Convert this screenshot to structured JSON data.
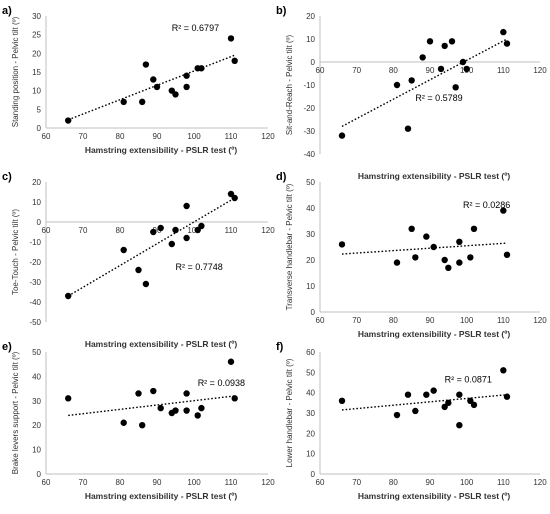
{
  "colors": {
    "point": "#000000",
    "trendline": "#000000",
    "axis": "#bfbfbf",
    "text": "#333333"
  },
  "chart_data": [
    {
      "id": "a",
      "panel_label": "a)",
      "type": "scatter",
      "xlabel": "Hamstring extensibility - PSLR test (º)",
      "ylabel": "Standing position - Pelvic tilt (º)",
      "xlim": [
        60,
        120
      ],
      "xticks": [
        60,
        70,
        80,
        90,
        100,
        110,
        120
      ],
      "ylim": [
        0,
        30
      ],
      "yticks": [
        0,
        5,
        10,
        15,
        20,
        25,
        30
      ],
      "x_axis_at": 0,
      "r2_text": "R² = 0.6797",
      "trendline": {
        "type": "linear",
        "points": [
          [
            66,
            2.2
          ],
          [
            111,
            19.5
          ]
        ]
      },
      "points": [
        [
          66,
          2
        ],
        [
          81,
          7
        ],
        [
          86,
          7
        ],
        [
          87,
          17
        ],
        [
          89,
          13
        ],
        [
          90,
          11
        ],
        [
          94,
          10
        ],
        [
          95,
          9
        ],
        [
          98,
          14
        ],
        [
          98,
          11
        ],
        [
          101,
          16
        ],
        [
          102,
          16
        ],
        [
          110,
          24
        ],
        [
          111,
          18
        ]
      ]
    },
    {
      "id": "b",
      "panel_label": "b)",
      "type": "scatter",
      "xlabel": "Hamstring extensibility - PSLR test (º)",
      "ylabel": "Sit-and-Reach - Pelvic tilt (º)",
      "xlim": [
        60,
        120
      ],
      "xticks": [
        60,
        70,
        80,
        90,
        100,
        110,
        120
      ],
      "ylim": [
        -40,
        20
      ],
      "yticks": [
        -40,
        -30,
        -20,
        -10,
        0,
        10,
        20
      ],
      "x_axis_at": 0,
      "r2_text": "R² = 0.5789",
      "trendline": {
        "type": "linear",
        "points": [
          [
            66,
            -28
          ],
          [
            111,
            10
          ]
        ]
      },
      "points": [
        [
          66,
          -32
        ],
        [
          81,
          -10
        ],
        [
          84,
          -29
        ],
        [
          85,
          -8
        ],
        [
          88,
          2
        ],
        [
          90,
          9
        ],
        [
          93,
          -3
        ],
        [
          94,
          7
        ],
        [
          96,
          9
        ],
        [
          97,
          -11
        ],
        [
          99,
          0
        ],
        [
          100,
          -3
        ],
        [
          110,
          13
        ],
        [
          111,
          8
        ]
      ]
    },
    {
      "id": "c",
      "panel_label": "c)",
      "type": "scatter",
      "xlabel": "Hamstring extensibility - PSLR test (º)",
      "ylabel": "Toe-Touch - Pelvic tilt (º)",
      "xlim": [
        60,
        120
      ],
      "xticks": [
        60,
        70,
        80,
        90,
        100,
        110,
        120
      ],
      "ylim": [
        -50,
        20
      ],
      "yticks": [
        -50,
        -40,
        -30,
        -20,
        -10,
        0,
        10,
        20
      ],
      "x_axis_at": 0,
      "r2_text": "R² = 0.7748",
      "trendline": {
        "type": "linear",
        "points": [
          [
            66,
            -37
          ],
          [
            111,
            12
          ]
        ]
      },
      "points": [
        [
          66,
          -37
        ],
        [
          81,
          -14
        ],
        [
          85,
          -24
        ],
        [
          87,
          -31
        ],
        [
          89,
          -5
        ],
        [
          91,
          -3
        ],
        [
          94,
          -11
        ],
        [
          95,
          -4
        ],
        [
          98,
          -8
        ],
        [
          98,
          8
        ],
        [
          101,
          -4
        ],
        [
          102,
          -2
        ],
        [
          110,
          14
        ],
        [
          111,
          12
        ]
      ]
    },
    {
      "id": "d",
      "panel_label": "d)",
      "type": "scatter",
      "xlabel": "Hamstring extensibility - PSLR test (º)",
      "ylabel": "Transverse handlebar - Pelvic tilt (º)",
      "xlim": [
        60,
        120
      ],
      "xticks": [
        60,
        70,
        80,
        90,
        100,
        110,
        120
      ],
      "ylim": [
        0,
        50
      ],
      "yticks": [
        0,
        10,
        20,
        30,
        40,
        50
      ],
      "x_axis_at": 0,
      "r2_text": "R² = 0.0286",
      "trendline": {
        "type": "linear",
        "points": [
          [
            66,
            22.3
          ],
          [
            111,
            26.5
          ]
        ]
      },
      "points": [
        [
          66,
          26
        ],
        [
          81,
          19
        ],
        [
          85,
          32
        ],
        [
          86,
          21
        ],
        [
          89,
          29
        ],
        [
          91,
          25
        ],
        [
          94,
          20
        ],
        [
          95,
          17
        ],
        [
          98,
          27
        ],
        [
          98,
          19
        ],
        [
          101,
          21
        ],
        [
          102,
          32
        ],
        [
          110,
          39
        ],
        [
          111,
          22
        ]
      ]
    },
    {
      "id": "e",
      "panel_label": "e)",
      "type": "scatter",
      "xlabel": "Hamstring extensibility - PSLR test (º)",
      "ylabel": "Brake levers support - Pelvic tilt (º)",
      "xlim": [
        60,
        120
      ],
      "xticks": [
        60,
        70,
        80,
        90,
        100,
        110,
        120
      ],
      "ylim": [
        0,
        50
      ],
      "yticks": [
        0,
        10,
        20,
        30,
        40,
        50
      ],
      "x_axis_at": 0,
      "r2_text": "R² = 0.0938",
      "trendline": {
        "type": "linear",
        "points": [
          [
            66,
            24
          ],
          [
            111,
            32
          ]
        ]
      },
      "points": [
        [
          66,
          31
        ],
        [
          81,
          21
        ],
        [
          85,
          33
        ],
        [
          86,
          20
        ],
        [
          89,
          34
        ],
        [
          91,
          27
        ],
        [
          94,
          25
        ],
        [
          95,
          26
        ],
        [
          98,
          33
        ],
        [
          98,
          26
        ],
        [
          101,
          24
        ],
        [
          102,
          27
        ],
        [
          110,
          46
        ],
        [
          111,
          31
        ]
      ]
    },
    {
      "id": "f",
      "panel_label": "f)",
      "type": "scatter",
      "xlabel": "Hamstring extensibility - PSLR test (º)",
      "ylabel": "Lower handlebar - Pelvic tilt (º)",
      "xlim": [
        60,
        120
      ],
      "xticks": [
        60,
        70,
        80,
        90,
        100,
        110,
        120
      ],
      "ylim": [
        0,
        60
      ],
      "yticks": [
        0,
        10,
        20,
        30,
        40,
        50,
        60
      ],
      "x_axis_at": 0,
      "r2_text": "R² = 0.0871",
      "trendline": {
        "type": "linear",
        "points": [
          [
            66,
            31.5
          ],
          [
            111,
            39
          ]
        ]
      },
      "points": [
        [
          66,
          36
        ],
        [
          81,
          29
        ],
        [
          84,
          39
        ],
        [
          86,
          31
        ],
        [
          89,
          39
        ],
        [
          91,
          41
        ],
        [
          94,
          33
        ],
        [
          95,
          35
        ],
        [
          98,
          39
        ],
        [
          98,
          24
        ],
        [
          101,
          36
        ],
        [
          102,
          34
        ],
        [
          110,
          51
        ],
        [
          111,
          38
        ]
      ]
    }
  ]
}
